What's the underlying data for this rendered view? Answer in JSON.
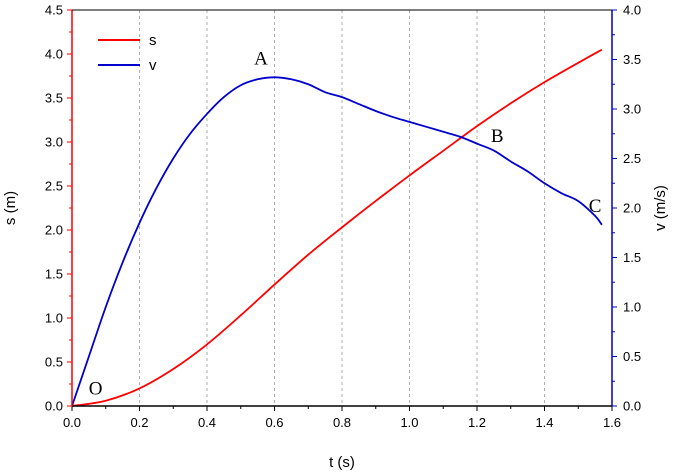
{
  "chart_data": {
    "type": "line",
    "title": "",
    "xlabel": "t (s)",
    "ylabel_left": "s (m)",
    "ylabel_right": "v (m/s)",
    "xlim": [
      0,
      1.6
    ],
    "ylim_left": [
      0,
      4.5
    ],
    "ylim_right": [
      0,
      4.0
    ],
    "x_ticks": [
      "0.0",
      "0.2",
      "0.4",
      "0.6",
      "0.8",
      "1.0",
      "1.2",
      "1.4",
      "1.6"
    ],
    "left_ticks": [
      "0.0",
      "0.5",
      "1.0",
      "1.5",
      "2.0",
      "2.5",
      "3.0",
      "3.5",
      "4.0",
      "4.5"
    ],
    "right_ticks": [
      "0.0",
      "0.5",
      "1.0",
      "1.5",
      "2.0",
      "2.5",
      "3.0",
      "3.5",
      "4.0"
    ],
    "grid": "vertical dashed",
    "legend_position": "top-left",
    "colors": {
      "s": "#ff0000",
      "v": "#0000cc",
      "left_axis": "#ff0000",
      "right_axis": "#0000cc"
    },
    "series": [
      {
        "name": "s",
        "axis": "left",
        "x": [
          0.0,
          0.1,
          0.2,
          0.3,
          0.4,
          0.5,
          0.6,
          0.7,
          0.8,
          0.9,
          1.0,
          1.1,
          1.2,
          1.3,
          1.4,
          1.5,
          1.57
        ],
        "y": [
          0.0,
          0.06,
          0.2,
          0.42,
          0.7,
          1.03,
          1.38,
          1.72,
          2.03,
          2.33,
          2.62,
          2.9,
          3.18,
          3.44,
          3.68,
          3.9,
          4.05
        ]
      },
      {
        "name": "v",
        "axis": "right",
        "x": [
          0.0,
          0.05,
          0.1,
          0.15,
          0.2,
          0.25,
          0.3,
          0.35,
          0.4,
          0.45,
          0.5,
          0.55,
          0.6,
          0.65,
          0.7,
          0.75,
          0.8,
          0.85,
          0.9,
          0.95,
          1.0,
          1.05,
          1.1,
          1.15,
          1.2,
          1.25,
          1.3,
          1.35,
          1.4,
          1.45,
          1.5,
          1.55,
          1.57
        ],
        "y": [
          0.0,
          0.5,
          1.0,
          1.45,
          1.85,
          2.2,
          2.5,
          2.75,
          2.95,
          3.12,
          3.24,
          3.3,
          3.32,
          3.3,
          3.25,
          3.17,
          3.12,
          3.05,
          2.98,
          2.92,
          2.87,
          2.82,
          2.77,
          2.72,
          2.65,
          2.58,
          2.47,
          2.37,
          2.25,
          2.15,
          2.07,
          1.92,
          1.83
        ]
      }
    ],
    "annotations": [
      {
        "text": "O",
        "x": 0.07,
        "y_left": 0.2
      },
      {
        "text": "A",
        "x": 0.56,
        "y_left": 3.95
      },
      {
        "text": "B",
        "x": 1.26,
        "y_left": 3.07
      },
      {
        "text": "C",
        "x": 1.55,
        "y_left": 2.27
      }
    ]
  }
}
